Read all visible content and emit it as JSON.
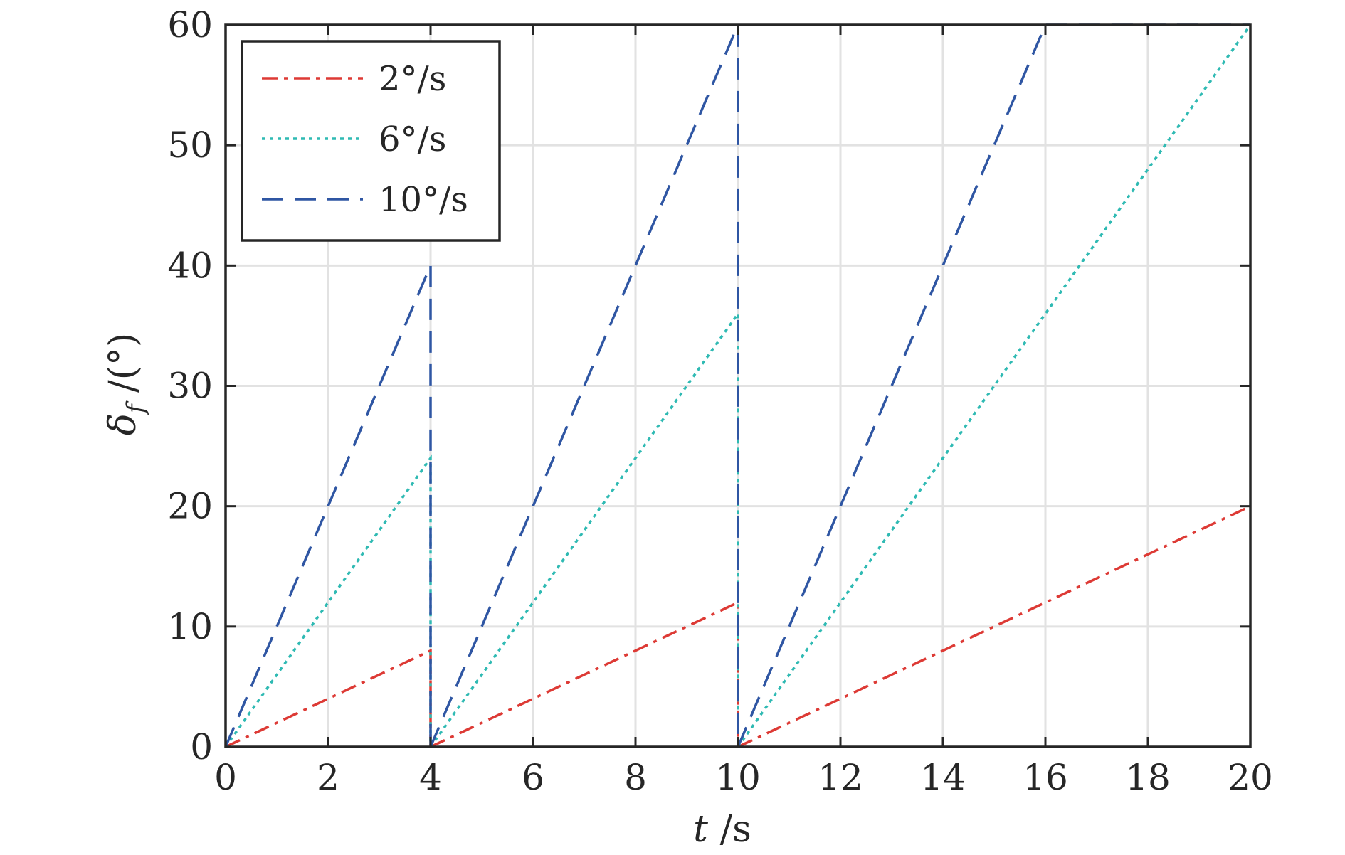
{
  "chart_data": {
    "type": "line",
    "title": "",
    "xlabel": {
      "main": "t",
      "unit": " /s"
    },
    "ylabel": {
      "symbol": "δ",
      "subscript": "f",
      "unit": " /(°)"
    },
    "xlim": [
      0,
      20
    ],
    "ylim": [
      0,
      60
    ],
    "xticks": [
      0,
      2,
      4,
      6,
      8,
      10,
      12,
      14,
      16,
      18,
      20
    ],
    "xtick_labels": [
      "0",
      "2",
      "4",
      "6",
      "8",
      "10",
      "12",
      "14",
      "16",
      "18",
      "20"
    ],
    "yticks": [
      0,
      10,
      20,
      30,
      40,
      50,
      60
    ],
    "ytick_labels": [
      "0",
      "10",
      "20",
      "30",
      "40",
      "50",
      "60"
    ],
    "grid": true,
    "legend_position": "top-left",
    "series": [
      {
        "name": "2°/s",
        "color": "#dd3a35",
        "dash": "dash-dot",
        "segments": [
          [
            [
              0,
              0
            ],
            [
              4,
              8
            ],
            [
              4,
              0
            ]
          ],
          [
            [
              4,
              0
            ],
            [
              10,
              12
            ],
            [
              10,
              0
            ]
          ],
          [
            [
              10,
              0
            ],
            [
              20,
              20
            ]
          ]
        ]
      },
      {
        "name": "6°/s",
        "color": "#2fbab3",
        "dash": "dotted",
        "segments": [
          [
            [
              0,
              0
            ],
            [
              4,
              24
            ],
            [
              4,
              0
            ]
          ],
          [
            [
              4,
              0
            ],
            [
              10,
              36
            ],
            [
              10,
              0
            ]
          ],
          [
            [
              10,
              0
            ],
            [
              20,
              60
            ]
          ]
        ]
      },
      {
        "name": "10°/s",
        "color": "#2f56a3",
        "dash": "dashed",
        "segments": [
          [
            [
              0,
              0
            ],
            [
              4,
              40
            ],
            [
              4,
              0
            ]
          ],
          [
            [
              4,
              0
            ],
            [
              10,
              60
            ],
            [
              10,
              0
            ]
          ],
          [
            [
              10,
              0
            ],
            [
              16,
              60
            ],
            [
              20,
              60
            ]
          ]
        ]
      }
    ]
  }
}
